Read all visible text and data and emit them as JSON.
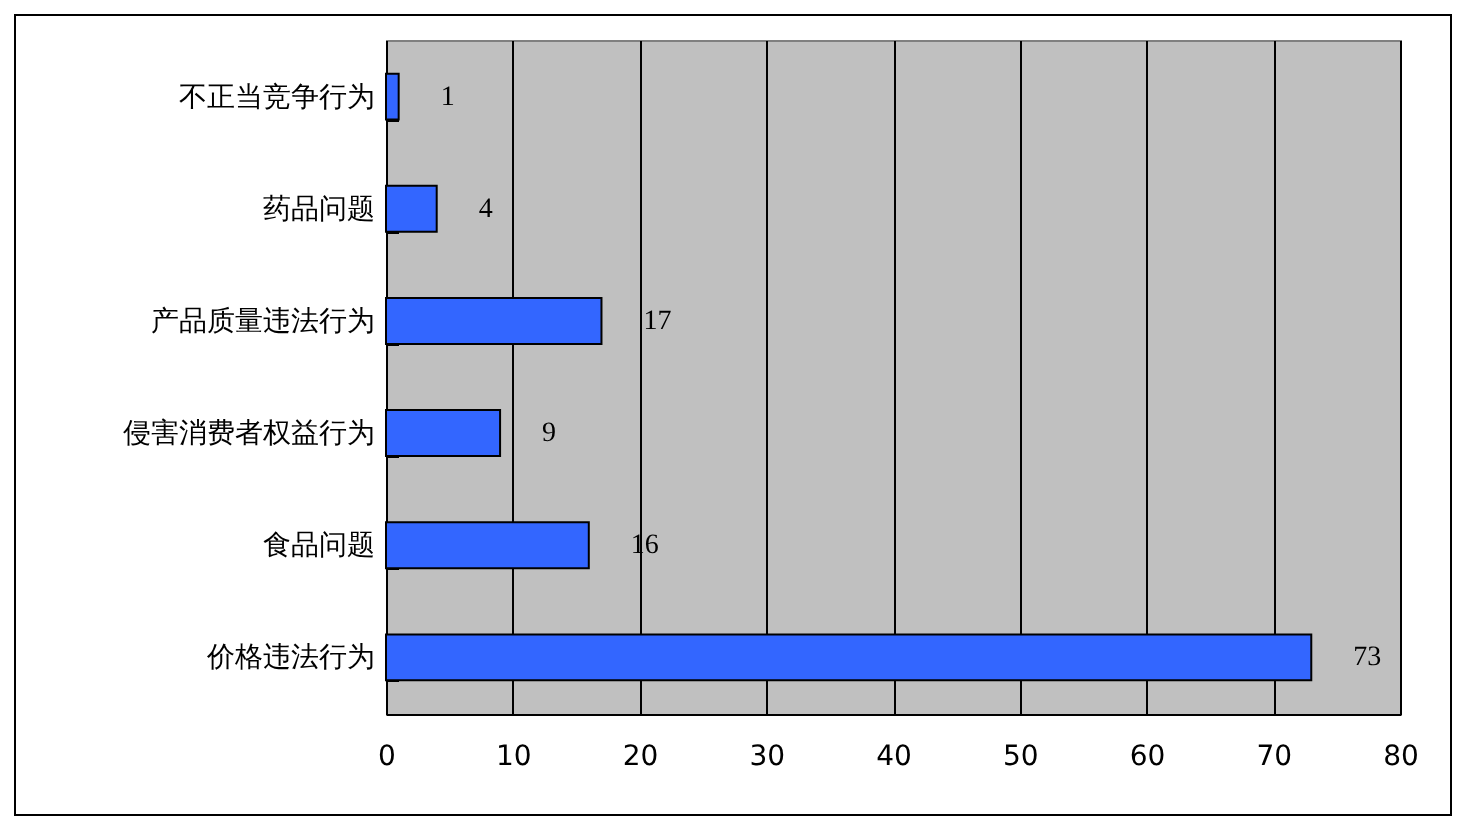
{
  "chart_data": {
    "type": "bar",
    "orientation": "horizontal",
    "categories": [
      "不正当竞争行为",
      "药品问题",
      "产品质量违法行为",
      "侵害消费者权益行为",
      "食品问题",
      "价格违法行为"
    ],
    "values": [
      1,
      4,
      17,
      9,
      16,
      73
    ],
    "color": "#3366ff",
    "xlim": [
      0,
      80
    ],
    "xticks": [
      0,
      10,
      20,
      30,
      40,
      50,
      60,
      70,
      80
    ],
    "grid": "x",
    "data_labels": true
  }
}
